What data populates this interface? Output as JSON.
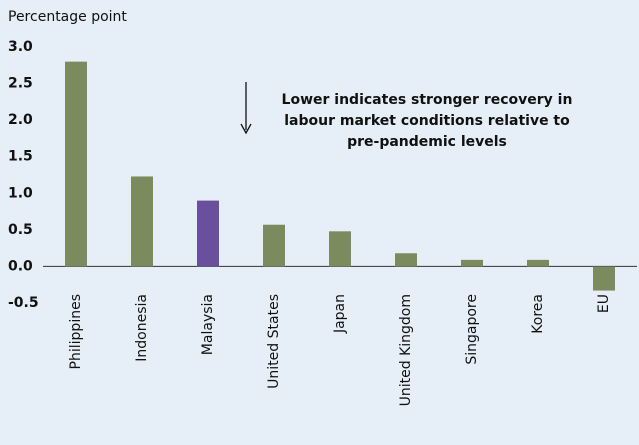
{
  "chart_data": {
    "type": "bar",
    "y_label": "Percentage point",
    "annotation": [
      "Lower indicates stronger recovery in",
      "labour market conditions relative to",
      "pre-pandemic levels"
    ],
    "categories": [
      "Philippines",
      "Indonesia",
      "Malaysia",
      "United States",
      "Japan",
      "United Kingdom",
      "Singapore",
      "Korea",
      "EU"
    ],
    "values": [
      2.8,
      1.23,
      0.9,
      0.57,
      0.48,
      0.18,
      0.09,
      0.09,
      -0.33
    ],
    "colors": [
      "#7b8b5d",
      "#7b8b5d",
      "#6a4f9c",
      "#7b8b5d",
      "#7b8b5d",
      "#7b8b5d",
      "#7b8b5d",
      "#7b8b5d",
      "#7b8b5d"
    ],
    "ylim": [
      -0.5,
      3.0
    ],
    "yticks": [
      -0.5,
      {
        "value": 0,
        "label": "0.0"
      },
      0.5,
      {
        "value": 1,
        "label": "1.0"
      },
      1.5,
      {
        "value": 2,
        "label": "2.0"
      },
      2.5,
      {
        "value": 3,
        "label": "3.0"
      }
    ],
    "grid": false
  }
}
